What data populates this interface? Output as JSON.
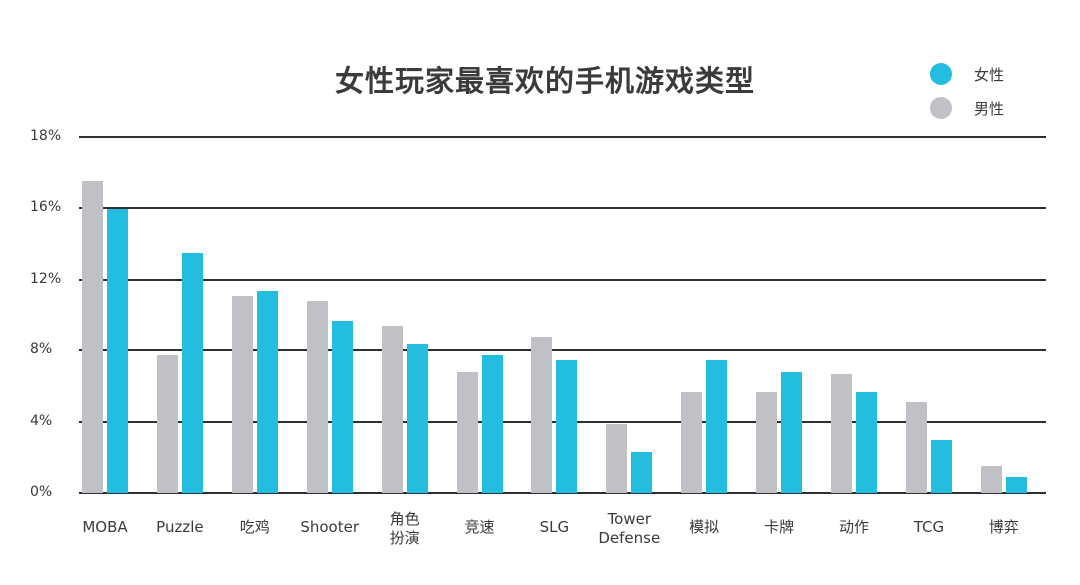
{
  "chart_data": {
    "type": "bar",
    "title": "女性玩家最喜欢的手机游戏类型",
    "xlabel": "",
    "ylabel": "",
    "y_ticks": [
      "18%",
      "16%",
      "12%",
      "8%",
      "4%",
      "0%"
    ],
    "ylim": [
      0,
      18
    ],
    "grid": true,
    "legend_position": "top-right",
    "categories": [
      "MOBA",
      "Puzzle",
      "吃鸡",
      "Shooter",
      "角色\n扮演",
      "竞速",
      "SLG",
      "Tower\nDefense",
      "模拟",
      "卡牌",
      "动作",
      "TCG",
      "博弈"
    ],
    "series": [
      {
        "name": "男性",
        "color": "#C0C1C6",
        "values": [
          17.6,
          7.8,
          11.1,
          10.8,
          9.4,
          6.8,
          8.8,
          3.9,
          5.7,
          5.7,
          6.7,
          5.1,
          1.5
        ]
      },
      {
        "name": "女性",
        "color": "#23BEDF",
        "values": [
          16.0,
          13.5,
          11.4,
          9.7,
          8.4,
          7.8,
          7.5,
          2.3,
          7.5,
          6.8,
          5.7,
          3.0,
          0.9
        ]
      }
    ]
  },
  "legend": [
    {
      "label": "女性",
      "color": "#23BEDF"
    },
    {
      "label": "男性",
      "color": "#C0C1C6"
    }
  ]
}
